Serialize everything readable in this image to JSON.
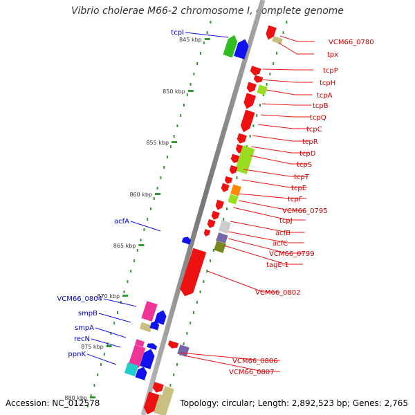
{
  "title": "Vibrio cholerae M66-2 chromosome I, complete genome",
  "footer": {
    "accession": "Accession: NC_012578",
    "summary": "Topology: circular; Length: 2,892,523 bp; Genes: 2,765"
  },
  "kbp_ticks": [
    "845 kbp",
    "850 kbp",
    "855 kbp",
    "860 kbp",
    "865 kbp",
    "870 kbp",
    "875 kbp",
    "880 kbp"
  ],
  "labels_right": [
    "VCM66_0780",
    "tpx",
    "tcpP",
    "tcpH",
    "tcpA",
    "tcpB",
    "tcpQ",
    "tcpC",
    "tcpR",
    "tcpD",
    "tcpS",
    "tcpT",
    "tcpE",
    "tcpF",
    "VCM66_0795",
    "tcpJ",
    "acfB",
    "acfC",
    "VCM66_0799",
    "tagE-1",
    "VCM66_0802",
    "VCM66_0806",
    "VCM66_0807"
  ],
  "labels_left": [
    "tcpI",
    "acfA",
    "VCM66_0804",
    "smpB",
    "smpA",
    "recN",
    "ppnK"
  ],
  "colors": {
    "red": "#ee1111",
    "blue": "#1111ee",
    "green": "#33bb22",
    "lime": "#99dd22",
    "khaki": "#c8c080",
    "pink": "#ee3399",
    "cyan": "#22cccc",
    "orange": "#ff8800",
    "olive": "#778822",
    "grey": "#cccccc",
    "purple": "#7766aa",
    "tick_green": "#339933",
    "backbone": "#888888"
  }
}
